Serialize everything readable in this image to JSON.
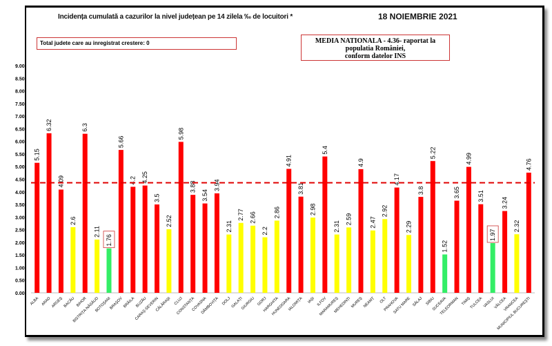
{
  "chart_data": {
    "type": "bar",
    "title": "Incidența cumulată a cazurilor la nivel județean pe 14 zilela ‰ de locuitori *",
    "date": "18 NOIEMBRIE 2021",
    "note": "Total judete care au inregistrat crestere: 0",
    "reference_text_1": "MEDIA NATIONALA - 4.36- raportat la populatia României,",
    "reference_text_2": "conform datelor INS",
    "reference_line": 4.36,
    "reference_line_color": "#e00000",
    "ylim": [
      0,
      9
    ],
    "yticks": [
      "0.00",
      "0.50",
      "1.00",
      "1.50",
      "2.00",
      "2.50",
      "3.00",
      "3.50",
      "4.00",
      "4.50",
      "5.00",
      "5.50",
      "6.00",
      "6.50",
      "7.00",
      "7.50",
      "8.00",
      "8.50",
      "9.00"
    ],
    "grid": false,
    "colors": {
      "red": "#ff0000",
      "yellow": "#ffff00",
      "green": "#33ee66"
    },
    "categories": [
      "ALBA",
      "ARAD",
      "ARGEȘ",
      "BACĂU",
      "BIHOR",
      "BISTRIȚA-NĂSĂUD",
      "BOTOȘANI",
      "BRAȘOV",
      "BRĂILA",
      "BUZĂU",
      "CARAȘ-SEVERIN",
      "CĂLĂRAȘI",
      "CLUJ",
      "CONSTANȚA",
      "COVASNA",
      "DÂMBOVIȚA",
      "DOLJ",
      "GALAȚI",
      "GIURGIU",
      "GORJ",
      "HARGHITA",
      "HUNEDOARA",
      "IALOMIȚA",
      "IAȘI",
      "ILFOV",
      "MARAMUREȘ",
      "MEHEDINȚI",
      "MUREȘ",
      "NEAMȚ",
      "OLT",
      "PRAHOVA",
      "SATU MARE",
      "SĂLAJ",
      "SIBIU",
      "SUCEAVA",
      "TELEORMAN",
      "TIMIȘ",
      "TULCEA",
      "VASLUI",
      "VÂLCEA",
      "VRANCEA",
      "MUNICIPIUL BUCUREȘTI"
    ],
    "values": [
      5.15,
      6.32,
      4.09,
      2.6,
      6.3,
      2.11,
      1.76,
      5.66,
      4.2,
      4.25,
      3.5,
      2.52,
      5.98,
      3.88,
      3.54,
      3.94,
      2.31,
      2.77,
      2.66,
      2.2,
      2.86,
      4.91,
      3.81,
      2.98,
      5.4,
      2.31,
      2.59,
      4.9,
      2.47,
      2.92,
      4.17,
      2.29,
      3.8,
      5.22,
      1.52,
      3.65,
      4.99,
      3.51,
      1.97,
      3.24,
      2.32,
      4.76
    ],
    "labels": [
      "5.15",
      "6.32",
      "4.09",
      "2.6",
      "6.3",
      "2.11",
      "1.76",
      "5.66",
      "4.2",
      "4.25",
      "3.5",
      "2.52",
      "5.98",
      "3.88",
      "3.54",
      "3.94",
      "2.31",
      "2.77",
      "2.66",
      "2.2",
      "2.86",
      "4.91",
      "3.81",
      "2.98",
      "5.4",
      "2.31",
      "2.59",
      "4.9",
      "2.47",
      "2.92",
      "4.17",
      "2.29",
      "3.8",
      "5.22",
      "1.52",
      "3.65",
      "4.99",
      "3.51",
      "1.97",
      "3.24",
      "2.32",
      "4.76"
    ],
    "bar_colors": [
      "red",
      "red",
      "red",
      "yellow",
      "red",
      "yellow",
      "green",
      "red",
      "red",
      "red",
      "red",
      "yellow",
      "red",
      "red",
      "red",
      "red",
      "yellow",
      "yellow",
      "yellow",
      "yellow",
      "yellow",
      "red",
      "red",
      "yellow",
      "red",
      "yellow",
      "yellow",
      "red",
      "yellow",
      "yellow",
      "red",
      "yellow",
      "red",
      "red",
      "green",
      "red",
      "red",
      "red",
      "green",
      "red",
      "yellow",
      "red"
    ],
    "boxed_labels": [
      "1.76",
      "1.97"
    ]
  }
}
